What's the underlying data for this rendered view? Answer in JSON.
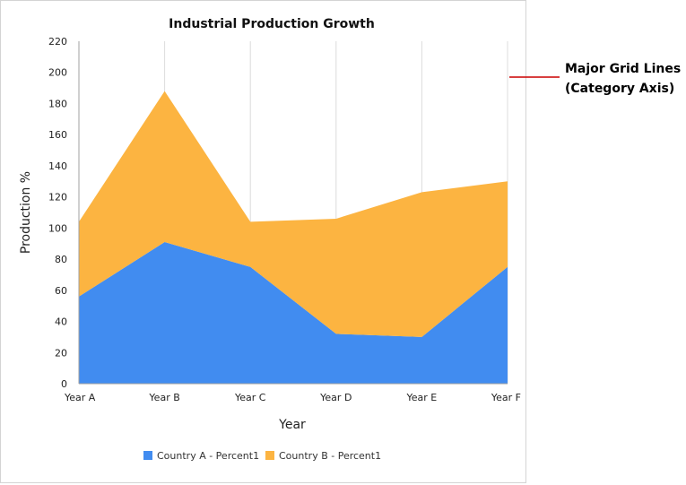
{
  "chart_data": {
    "type": "area",
    "title": "Industrial Production Growth",
    "xlabel": "Year",
    "ylabel": "Production %",
    "categories": [
      "Year A",
      "Year B",
      "Year C",
      "Year D",
      "Year E",
      "Year F"
    ],
    "ylim": [
      0,
      220
    ],
    "yticks": [
      0,
      20,
      40,
      60,
      80,
      100,
      120,
      140,
      160,
      180,
      200,
      220
    ],
    "stacked": true,
    "grid": "vertical major grid lines on category axis",
    "legend_position": "bottom",
    "series": [
      {
        "name": "Country A - Percent1",
        "values": [
          56,
          91,
          75,
          32,
          30,
          75
        ],
        "color": "#418CF0"
      },
      {
        "name": "Country B - Percent1",
        "values": [
          48,
          97,
          29,
          74,
          93,
          55
        ],
        "color": "#FCB441"
      }
    ]
  },
  "annotation": {
    "line1": "Major Grid Lines",
    "line2": "(Category Axis)",
    "color": "#cc0000"
  }
}
